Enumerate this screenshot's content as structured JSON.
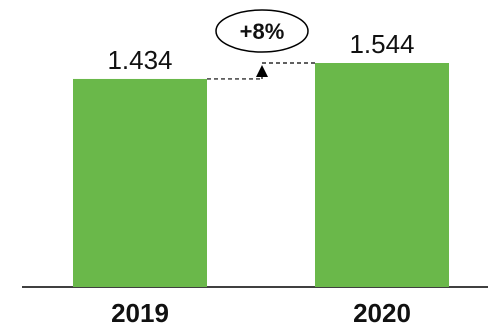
{
  "chart_data": {
    "type": "bar",
    "categories": [
      "2019",
      "2020"
    ],
    "values": [
      1.434,
      1.544
    ],
    "value_labels": [
      "1.434",
      "1.544"
    ],
    "change_label": "+8%",
    "title": "",
    "xlabel": "",
    "ylabel": "",
    "ylim": [
      0,
      1.544
    ],
    "grid": false,
    "legend": "none",
    "colors": {
      "bar": "#6ab84a",
      "text": "#111111",
      "axis": "#000000",
      "connector": "#000000"
    }
  }
}
